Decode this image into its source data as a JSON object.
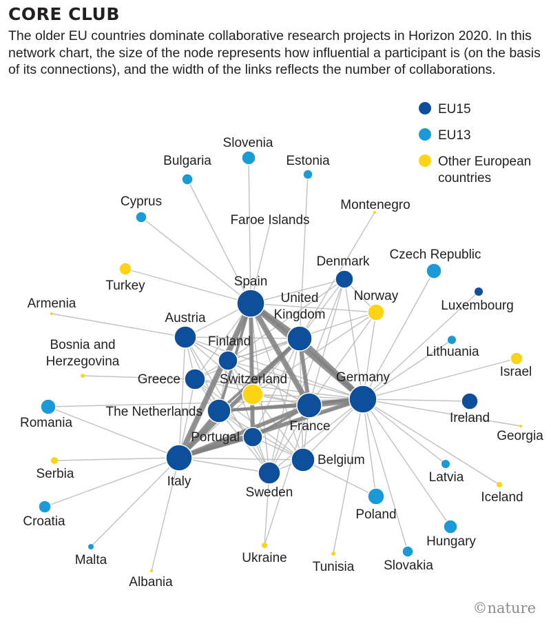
{
  "title": "CORE CLUB",
  "subtitle": "The older EU countries dominate collaborative research projects in Horizon 2020. In this network chart, the size of the node represents how influential a participant is (on the basis of its connections), and the width of the links reflects the number of collaborations.",
  "colors": {
    "EU15": "#0d4f9b",
    "EU13": "#1a9ad6",
    "Other": "#fcd415",
    "link": "#b5b5b5",
    "strong_link": "#808080"
  },
  "legend": [
    {
      "group": "EU15",
      "label": [
        "EU15"
      ]
    },
    {
      "group": "EU13",
      "label": [
        "EU13"
      ]
    },
    {
      "group": "Other",
      "label": [
        "Other European",
        "countries"
      ]
    }
  ],
  "nodes": [
    {
      "id": "spain",
      "label": [
        "Spain"
      ],
      "group": "EU15"
    },
    {
      "id": "uk",
      "label": [
        "United",
        "Kingdom"
      ],
      "group": "EU15"
    },
    {
      "id": "germany",
      "label": [
        "Germany"
      ],
      "group": "EU15"
    },
    {
      "id": "france",
      "label": [
        "France"
      ],
      "group": "EU15"
    },
    {
      "id": "italy",
      "label": [
        "Italy"
      ],
      "group": "EU15"
    },
    {
      "id": "austria",
      "label": [
        "Austria"
      ],
      "group": "EU15"
    },
    {
      "id": "finland",
      "label": [
        "Finland"
      ],
      "group": "EU15"
    },
    {
      "id": "greece",
      "label": [
        "Greece"
      ],
      "group": "EU15"
    },
    {
      "id": "netherlands",
      "label": [
        "The Netherlands"
      ],
      "group": "EU15"
    },
    {
      "id": "portugal",
      "label": [
        "Portugal"
      ],
      "group": "EU15"
    },
    {
      "id": "belgium",
      "label": [
        "Belgium"
      ],
      "group": "EU15"
    },
    {
      "id": "sweden",
      "label": [
        "Sweden"
      ],
      "group": "EU15"
    },
    {
      "id": "denmark",
      "label": [
        "Denmark"
      ],
      "group": "EU15"
    },
    {
      "id": "ireland",
      "label": [
        "Ireland"
      ],
      "group": "EU15"
    },
    {
      "id": "luxembourg",
      "label": [
        "Luxembourg"
      ],
      "group": "EU15"
    },
    {
      "id": "switzerland",
      "label": [
        "Switzerland"
      ],
      "group": "Other"
    },
    {
      "id": "norway",
      "label": [
        "Norway"
      ],
      "group": "Other"
    },
    {
      "id": "israel",
      "label": [
        "Israel"
      ],
      "group": "Other"
    },
    {
      "id": "turkey",
      "label": [
        "Turkey"
      ],
      "group": "Other"
    },
    {
      "id": "iceland",
      "label": [
        "Iceland"
      ],
      "group": "Other"
    },
    {
      "id": "serbia",
      "label": [
        "Serbia"
      ],
      "group": "Other"
    },
    {
      "id": "ukraine",
      "label": [
        "Ukraine"
      ],
      "group": "Other"
    },
    {
      "id": "tunisia",
      "label": [
        "Tunisia"
      ],
      "group": "Other"
    },
    {
      "id": "georgia",
      "label": [
        "Georgia"
      ],
      "group": "Other"
    },
    {
      "id": "armenia",
      "label": [
        "Armenia"
      ],
      "group": "Other"
    },
    {
      "id": "bosnia",
      "label": [
        "Bosnia and",
        "Herzegovina"
      ],
      "group": "Other"
    },
    {
      "id": "montenegro",
      "label": [
        "Montenegro"
      ],
      "group": "Other"
    },
    {
      "id": "albania",
      "label": [
        "Albania"
      ],
      "group": "Other"
    },
    {
      "id": "faroe",
      "label": [
        "Faroe Islands"
      ],
      "group": "Other"
    },
    {
      "id": "slovenia",
      "label": [
        "Slovenia"
      ],
      "group": "EU13"
    },
    {
      "id": "bulgaria",
      "label": [
        "Bulgaria"
      ],
      "group": "EU13"
    },
    {
      "id": "estonia",
      "label": [
        "Estonia"
      ],
      "group": "EU13"
    },
    {
      "id": "cyprus",
      "label": [
        "Cyprus"
      ],
      "group": "EU13"
    },
    {
      "id": "czech",
      "label": [
        "Czech Republic"
      ],
      "group": "EU13"
    },
    {
      "id": "lithuania",
      "label": [
        "Lithuania"
      ],
      "group": "EU13"
    },
    {
      "id": "romania",
      "label": [
        "Romania"
      ],
      "group": "EU13"
    },
    {
      "id": "croatia",
      "label": [
        "Croatia"
      ],
      "group": "EU13"
    },
    {
      "id": "malta",
      "label": [
        "Malta"
      ],
      "group": "EU13"
    },
    {
      "id": "poland",
      "label": [
        "Poland"
      ],
      "group": "EU13"
    },
    {
      "id": "hungary",
      "label": [
        "Hungary"
      ],
      "group": "EU13"
    },
    {
      "id": "slovakia",
      "label": [
        "Slovakia"
      ],
      "group": "EU13"
    },
    {
      "id": "latvia",
      "label": [
        "Latvia"
      ],
      "group": "EU13"
    }
  ],
  "links": [
    [
      "spain",
      "uk"
    ],
    [
      "spain",
      "germany"
    ],
    [
      "spain",
      "france"
    ],
    [
      "spain",
      "italy"
    ],
    [
      "spain",
      "austria"
    ],
    [
      "spain",
      "finland"
    ],
    [
      "spain",
      "greece"
    ],
    [
      "spain",
      "netherlands"
    ],
    [
      "spain",
      "portugal"
    ],
    [
      "spain",
      "belgium"
    ],
    [
      "spain",
      "sweden"
    ],
    [
      "spain",
      "denmark"
    ],
    [
      "spain",
      "switzerland"
    ],
    [
      "spain",
      "norway"
    ],
    [
      "spain",
      "slovenia"
    ],
    [
      "spain",
      "bulgaria"
    ],
    [
      "spain",
      "cyprus"
    ],
    [
      "spain",
      "turkey"
    ],
    [
      "spain",
      "faroe"
    ],
    [
      "uk",
      "germany"
    ],
    [
      "uk",
      "france"
    ],
    [
      "uk",
      "italy"
    ],
    [
      "uk",
      "netherlands"
    ],
    [
      "uk",
      "belgium"
    ],
    [
      "uk",
      "sweden"
    ],
    [
      "uk",
      "denmark"
    ],
    [
      "uk",
      "switzerland"
    ],
    [
      "uk",
      "greece"
    ],
    [
      "uk",
      "portugal"
    ],
    [
      "uk",
      "estonia"
    ],
    [
      "uk",
      "montenegro"
    ],
    [
      "uk",
      "finland"
    ],
    [
      "uk",
      "austria"
    ],
    [
      "germany",
      "france"
    ],
    [
      "germany",
      "italy"
    ],
    [
      "germany",
      "netherlands"
    ],
    [
      "germany",
      "belgium"
    ],
    [
      "germany",
      "austria"
    ],
    [
      "germany",
      "switzerland"
    ],
    [
      "germany",
      "sweden"
    ],
    [
      "germany",
      "finland"
    ],
    [
      "germany",
      "denmark"
    ],
    [
      "germany",
      "portugal"
    ],
    [
      "germany",
      "greece"
    ],
    [
      "germany",
      "norway"
    ],
    [
      "germany",
      "ireland"
    ],
    [
      "germany",
      "czech"
    ],
    [
      "germany",
      "lithuania"
    ],
    [
      "germany",
      "israel"
    ],
    [
      "germany",
      "luxembourg"
    ],
    [
      "germany",
      "poland"
    ],
    [
      "germany",
      "hungary"
    ],
    [
      "germany",
      "slovakia"
    ],
    [
      "germany",
      "latvia"
    ],
    [
      "germany",
      "iceland"
    ],
    [
      "germany",
      "tunisia"
    ],
    [
      "germany",
      "georgia"
    ],
    [
      "germany",
      "romania"
    ],
    [
      "france",
      "italy"
    ],
    [
      "france",
      "netherlands"
    ],
    [
      "france",
      "belgium"
    ],
    [
      "france",
      "portugal"
    ],
    [
      "france",
      "switzerland"
    ],
    [
      "france",
      "greece"
    ],
    [
      "france",
      "finland"
    ],
    [
      "france",
      "austria"
    ],
    [
      "france",
      "sweden"
    ],
    [
      "france",
      "denmark"
    ],
    [
      "france",
      "norway"
    ],
    [
      "france",
      "ukraine"
    ],
    [
      "italy",
      "netherlands"
    ],
    [
      "italy",
      "portugal"
    ],
    [
      "italy",
      "greece"
    ],
    [
      "italy",
      "belgium"
    ],
    [
      "italy",
      "austria"
    ],
    [
      "italy",
      "sweden"
    ],
    [
      "italy",
      "switzerland"
    ],
    [
      "italy",
      "serbia"
    ],
    [
      "italy",
      "croatia"
    ],
    [
      "italy",
      "malta"
    ],
    [
      "italy",
      "albania"
    ],
    [
      "italy",
      "romania"
    ],
    [
      "austria",
      "netherlands"
    ],
    [
      "austria",
      "finland"
    ],
    [
      "austria",
      "greece"
    ],
    [
      "austria",
      "armenia"
    ],
    [
      "austria",
      "switzerland"
    ],
    [
      "austria",
      "sweden"
    ],
    [
      "netherlands",
      "belgium"
    ],
    [
      "netherlands",
      "portugal"
    ],
    [
      "netherlands",
      "greece"
    ],
    [
      "netherlands",
      "sweden"
    ],
    [
      "netherlands",
      "finland"
    ],
    [
      "netherlands",
      "switzerland"
    ],
    [
      "belgium",
      "portugal"
    ],
    [
      "belgium",
      "sweden"
    ],
    [
      "belgium",
      "poland"
    ],
    [
      "belgium",
      "switzerland"
    ],
    [
      "belgium",
      "greece"
    ],
    [
      "greece",
      "portugal"
    ],
    [
      "greece",
      "finland"
    ],
    [
      "greece",
      "bosnia"
    ],
    [
      "portugal",
      "sweden"
    ],
    [
      "portugal",
      "switzerland"
    ],
    [
      "sweden",
      "finland"
    ],
    [
      "sweden",
      "denmark"
    ],
    [
      "sweden",
      "ukraine"
    ],
    [
      "denmark",
      "norway"
    ],
    [
      "denmark",
      "finland"
    ],
    [
      "switzerland",
      "norway"
    ],
    [
      "switzerland",
      "finland"
    ],
    [
      "norway",
      "finland"
    ]
  ],
  "strong_links": [
    [
      "spain",
      "france"
    ],
    [
      "spain",
      "germany"
    ],
    [
      "spain",
      "italy"
    ],
    [
      "spain",
      "uk"
    ],
    [
      "uk",
      "germany"
    ],
    [
      "germany",
      "france"
    ],
    [
      "france",
      "italy"
    ],
    [
      "uk",
      "france"
    ],
    [
      "uk",
      "italy"
    ],
    [
      "germany",
      "italy"
    ],
    [
      "italy",
      "netherlands"
    ],
    [
      "spain",
      "portugal"
    ],
    [
      "france",
      "portugal"
    ],
    [
      "italy",
      "portugal"
    ],
    [
      "germany",
      "netherlands"
    ],
    [
      "spain",
      "netherlands"
    ],
    [
      "france",
      "netherlands"
    ],
    [
      "uk",
      "netherlands"
    ]
  ],
  "credit": "©nature"
}
